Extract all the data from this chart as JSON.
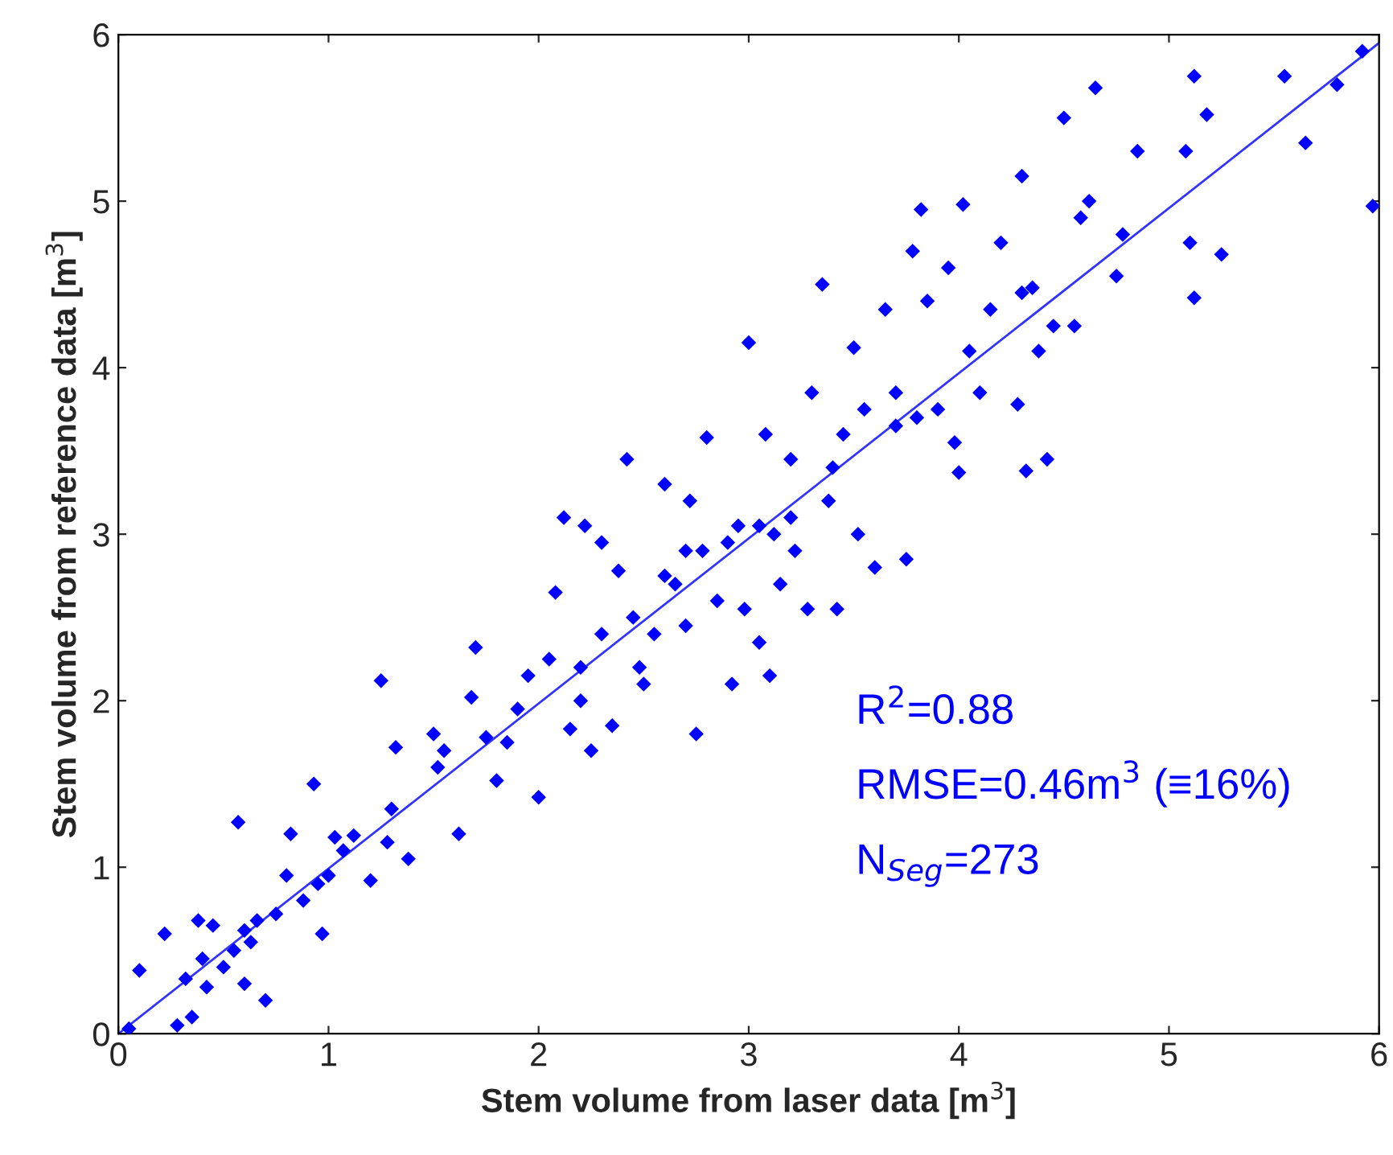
{
  "chart_data": {
    "type": "scatter",
    "xlabel": "Stem volume from laser data [m$^{3}$]",
    "ylabel": "Stem volume from reference data [m$^{3}$]",
    "annotations": [
      "R$^{2}$=0.88",
      "RMSE=0.46m$^{3}$ (≡16%)",
      "N$_{Seg}$=273"
    ],
    "xlim": [
      0,
      6
    ],
    "ylim": [
      0,
      6
    ],
    "xticks": [
      0,
      1,
      2,
      3,
      4,
      5,
      6
    ],
    "yticks": [
      0,
      1,
      2,
      3,
      4,
      5,
      6
    ],
    "grid": false,
    "legend": false,
    "series": [
      {
        "color": "#0000ff",
        "marker": "diamond",
        "x": [
          0.05,
          0.1,
          0.22,
          0.28,
          0.32,
          0.35,
          0.38,
          0.4,
          0.42,
          0.45,
          0.5,
          0.55,
          0.57,
          0.6,
          0.63,
          0.66,
          0.7,
          0.75,
          0.8,
          0.82,
          0.88,
          0.93,
          0.95,
          0.97,
          1.0,
          1.03,
          1.07,
          1.12,
          1.2,
          1.25,
          1.28,
          1.32,
          1.38,
          1.5,
          1.52,
          1.55,
          1.62,
          1.68,
          1.7,
          1.75,
          1.8,
          1.85,
          1.9,
          1.95,
          2.0,
          2.05,
          2.08,
          2.12,
          2.15,
          2.2,
          2.22,
          2.25,
          2.3,
          2.35,
          2.38,
          2.42,
          2.45,
          2.48,
          2.5,
          2.55,
          2.6,
          2.65,
          2.7,
          2.72,
          2.75,
          2.78,
          2.8,
          2.85,
          2.9,
          2.92,
          2.95,
          2.98,
          3.0,
          3.05,
          3.08,
          3.1,
          3.12,
          3.15,
          3.2,
          3.22,
          3.28,
          3.3,
          3.35,
          3.38,
          3.42,
          3.45,
          3.5,
          3.52,
          3.55,
          3.6,
          3.65,
          3.7,
          3.75,
          3.78,
          3.8,
          3.82,
          3.85,
          3.9,
          3.95,
          3.98,
          4.0,
          4.02,
          4.05,
          4.1,
          4.15,
          4.2,
          4.28,
          4.3,
          4.32,
          4.35,
          4.38,
          4.42,
          4.45,
          4.5,
          4.55,
          4.58,
          4.62,
          4.65,
          4.75,
          4.78,
          4.85,
          5.08,
          5.1,
          5.12,
          5.12,
          5.18,
          5.25,
          5.55,
          5.65,
          5.8,
          5.92,
          5.97,
          3.05,
          2.6,
          2.7,
          3.2,
          3.4,
          3.7,
          4.3,
          1.3,
          0.6,
          2.2,
          2.3
        ],
        "values": [
          0.03,
          0.38,
          0.6,
          0.05,
          0.33,
          0.1,
          0.68,
          0.45,
          0.28,
          0.65,
          0.4,
          0.5,
          1.27,
          0.3,
          0.55,
          0.68,
          0.2,
          0.72,
          0.95,
          1.2,
          0.8,
          1.5,
          0.9,
          0.6,
          0.95,
          1.18,
          1.1,
          1.19,
          0.92,
          2.12,
          1.15,
          1.72,
          1.05,
          1.8,
          1.6,
          1.7,
          1.2,
          2.02,
          2.32,
          1.78,
          1.52,
          1.75,
          1.95,
          2.15,
          1.42,
          2.25,
          2.65,
          3.1,
          1.83,
          2.0,
          3.05,
          1.7,
          2.95,
          1.85,
          2.78,
          3.45,
          2.5,
          2.2,
          2.1,
          2.4,
          3.3,
          2.7,
          2.45,
          3.2,
          1.8,
          2.9,
          3.58,
          2.6,
          2.95,
          2.1,
          3.05,
          2.55,
          4.15,
          2.35,
          3.6,
          2.15,
          3.0,
          2.7,
          3.45,
          2.9,
          2.55,
          3.85,
          4.5,
          3.2,
          2.55,
          3.6,
          4.12,
          3.0,
          3.75,
          2.8,
          4.35,
          3.65,
          2.85,
          4.7,
          3.7,
          4.95,
          4.4,
          3.75,
          4.6,
          3.55,
          3.37,
          4.98,
          4.1,
          3.85,
          4.35,
          4.75,
          3.78,
          5.15,
          3.38,
          4.48,
          4.1,
          3.45,
          4.25,
          5.5,
          4.25,
          4.9,
          5.0,
          5.68,
          4.55,
          4.8,
          5.3,
          5.3,
          4.75,
          4.42,
          5.75,
          5.52,
          4.68,
          5.75,
          5.35,
          5.7,
          5.9,
          4.97,
          3.05,
          2.75,
          2.9,
          3.1,
          3.4,
          3.85,
          4.45,
          1.35,
          0.62,
          2.2,
          2.4
        ]
      },
      {
        "type": "line",
        "marker": "none",
        "color": "#3333ff",
        "x": [
          0,
          6
        ],
        "values": [
          0.0,
          5.95
        ]
      }
    ]
  }
}
